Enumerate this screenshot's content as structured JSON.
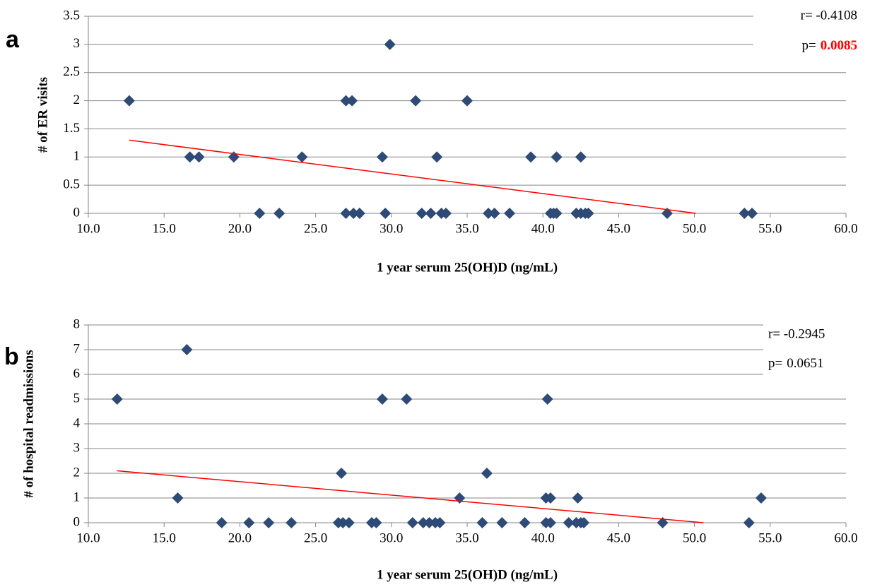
{
  "chart_data": [
    {
      "type": "scatter",
      "panel": "a",
      "ylabel": "# of ER visits",
      "xlabel": "1 year serum 25(OH)D (ng/mL)",
      "r_text": "r= -0.4108",
      "p_label": "p=",
      "p_value": "0.0085",
      "p_color": "#ff0000",
      "xlim": [
        10,
        60
      ],
      "ylim": [
        0,
        3.5
      ],
      "xticks": [
        {
          "value": 10,
          "label": "10.0"
        },
        {
          "value": 15,
          "label": "15.0"
        },
        {
          "value": 20,
          "label": "20.0"
        },
        {
          "value": 25,
          "label": "25.0"
        },
        {
          "value": 30,
          "label": "30.0"
        },
        {
          "value": 35,
          "label": "35.0"
        },
        {
          "value": 40,
          "label": "40.0"
        },
        {
          "value": 45,
          "label": "45.0"
        },
        {
          "value": 50,
          "label": "50.0"
        },
        {
          "value": 55,
          "label": "55.0"
        },
        {
          "value": 60,
          "label": "60.0"
        }
      ],
      "yticks": [
        0,
        0.5,
        1,
        1.5,
        2,
        2.5,
        3,
        3.5
      ],
      "grid": true,
      "color": "#2e4a76",
      "x": [
        29.9,
        12.7,
        27.0,
        27.4,
        31.6,
        35.0,
        16.7,
        17.3,
        19.6,
        24.1,
        29.4,
        33.0,
        39.2,
        40.9,
        42.5,
        21.3,
        22.6,
        27.0,
        27.5,
        27.9,
        29.6,
        32.0,
        32.6,
        33.3,
        33.6,
        36.4,
        36.8,
        37.8,
        40.5,
        40.7,
        40.9,
        42.2,
        42.5,
        42.8,
        43.0,
        48.2,
        53.3,
        53.8
      ],
      "values": [
        3,
        2,
        2,
        2,
        2,
        2,
        1,
        1,
        1,
        1,
        1,
        1,
        1,
        1,
        1,
        0,
        0,
        0,
        0,
        0,
        0,
        0,
        0,
        0,
        0,
        0,
        0,
        0,
        0,
        0,
        0,
        0,
        0,
        0,
        0,
        0,
        0,
        0
      ],
      "trendline": {
        "color": "#ff0000",
        "x": [
          12.7,
          50.1
        ],
        "y": [
          1.3,
          0
        ]
      }
    },
    {
      "type": "scatter",
      "panel": "b",
      "ylabel": "# of hospital readmissions",
      "xlabel": "1 year serum 25(OH)D (ng/mL)",
      "r_text": "r= -0.2945",
      "p_label": "p=",
      "p_value": "0.0651",
      "p_color": "#000000",
      "xlim": [
        10,
        60
      ],
      "ylim": [
        0,
        8
      ],
      "xticks": [
        {
          "value": 10,
          "label": "10.0"
        },
        {
          "value": 15,
          "label": "15.0"
        },
        {
          "value": 20,
          "label": "20.0"
        },
        {
          "value": 25,
          "label": "25.0"
        },
        {
          "value": 30,
          "label": "30.0"
        },
        {
          "value": 35,
          "label": "35.0"
        },
        {
          "value": 40,
          "label": "40.0"
        },
        {
          "value": 45,
          "label": "45.0"
        },
        {
          "value": 50,
          "label": "50.0"
        },
        {
          "value": 55,
          "label": "55.0"
        },
        {
          "value": 60,
          "label": "60.0"
        }
      ],
      "yticks": [
        0,
        1,
        2,
        3,
        4,
        5,
        6,
        7,
        8
      ],
      "grid": true,
      "color": "#2e4a76",
      "x": [
        16.5,
        11.9,
        29.4,
        31.0,
        40.3,
        26.7,
        36.3,
        15.9,
        34.5,
        40.2,
        40.5,
        42.3,
        54.4,
        18.8,
        20.6,
        21.9,
        23.4,
        26.5,
        26.8,
        27.2,
        28.7,
        29.0,
        31.4,
        32.1,
        32.5,
        32.9,
        33.2,
        36.0,
        37.3,
        38.8,
        40.2,
        40.5,
        41.7,
        42.2,
        42.5,
        42.7,
        47.9,
        53.6
      ],
      "values": [
        7,
        5,
        5,
        5,
        5,
        2,
        2,
        1,
        1,
        1,
        1,
        1,
        1,
        0,
        0,
        0,
        0,
        0,
        0,
        0,
        0,
        0,
        0,
        0,
        0,
        0,
        0,
        0,
        0,
        0,
        0,
        0,
        0,
        0,
        0,
        0,
        0,
        0
      ],
      "trendline": {
        "color": "#ff0000",
        "x": [
          11.9,
          50.6
        ],
        "y": [
          2.1,
          0
        ]
      }
    }
  ]
}
